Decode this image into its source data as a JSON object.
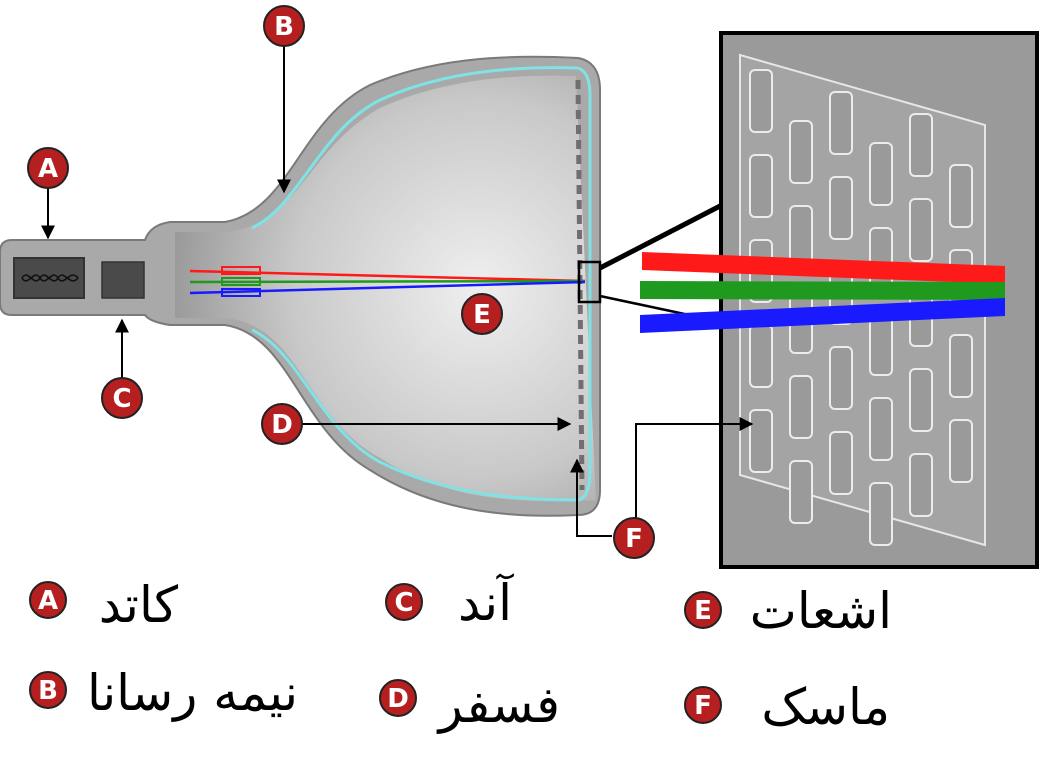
{
  "markers": {
    "a": "A",
    "b": "B",
    "c": "C",
    "d": "D",
    "e": "E",
    "f": "F"
  },
  "legend": {
    "a": {
      "letter": "A",
      "label": "کاتد"
    },
    "b": {
      "letter": "B",
      "label": "نیمه رسانا"
    },
    "c": {
      "letter": "C",
      "label": "آند"
    },
    "d": {
      "letter": "D",
      "label": "فسفر"
    },
    "e": {
      "letter": "E",
      "label": "اشعات"
    },
    "f": {
      "letter": "F",
      "label": "ماسک"
    }
  },
  "colors": {
    "marker": "#b51f1f",
    "beam_red": "#ff1a1a",
    "beam_green": "#1f9a1f",
    "beam_blue": "#1a1aff",
    "coating": "#7fe3e6",
    "tube": "#a9a9a9",
    "mask_panel": "#9a9a9a"
  }
}
